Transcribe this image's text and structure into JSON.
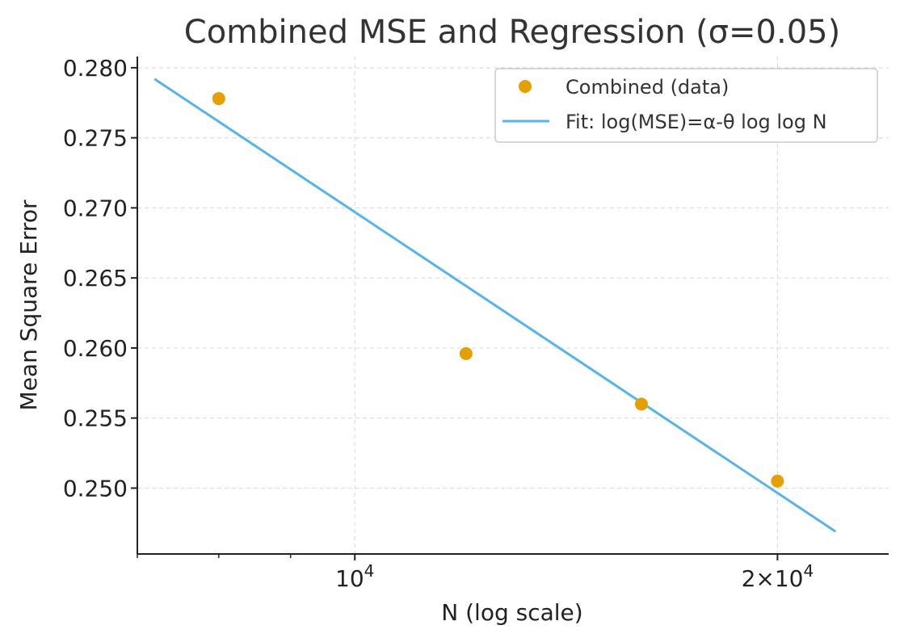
{
  "chart_data": {
    "type": "scatter",
    "title": "Combined MSE and Regression (σ=0.05)",
    "xlabel": "N (log scale)",
    "ylabel": "Mean Square Error",
    "x_scale": "log",
    "xlim": [
      7000,
      24000
    ],
    "ylim": [
      0.2453,
      0.2808
    ],
    "x_ticks": [
      {
        "value": 10000,
        "base": "10",
        "exp": "4"
      },
      {
        "value": 20000,
        "base": "2×10",
        "exp": "4"
      }
    ],
    "x_minor_ticks": [
      7000,
      8000,
      9000
    ],
    "y_ticks": [
      {
        "value": 0.25,
        "label": "0.250"
      },
      {
        "value": 0.255,
        "label": "0.255"
      },
      {
        "value": 0.26,
        "label": "0.260"
      },
      {
        "value": 0.265,
        "label": "0.265"
      },
      {
        "value": 0.27,
        "label": "0.270"
      },
      {
        "value": 0.275,
        "label": "0.275"
      },
      {
        "value": 0.28,
        "label": "0.280"
      }
    ],
    "grid": true,
    "legend_position": "top-right",
    "series": [
      {
        "name": "Combined (data)",
        "kind": "scatter",
        "color": "#e69f00",
        "x": [
          8000,
          12000,
          16000,
          20000
        ],
        "y": [
          0.2778,
          0.2596,
          0.256,
          0.2505
        ]
      },
      {
        "name": "Fit: log(MSE)=α-θ log log N",
        "kind": "line",
        "color": "#56b4e9",
        "x": [
          7200,
          22000
        ],
        "y": [
          0.2792,
          0.2469
        ]
      }
    ]
  }
}
